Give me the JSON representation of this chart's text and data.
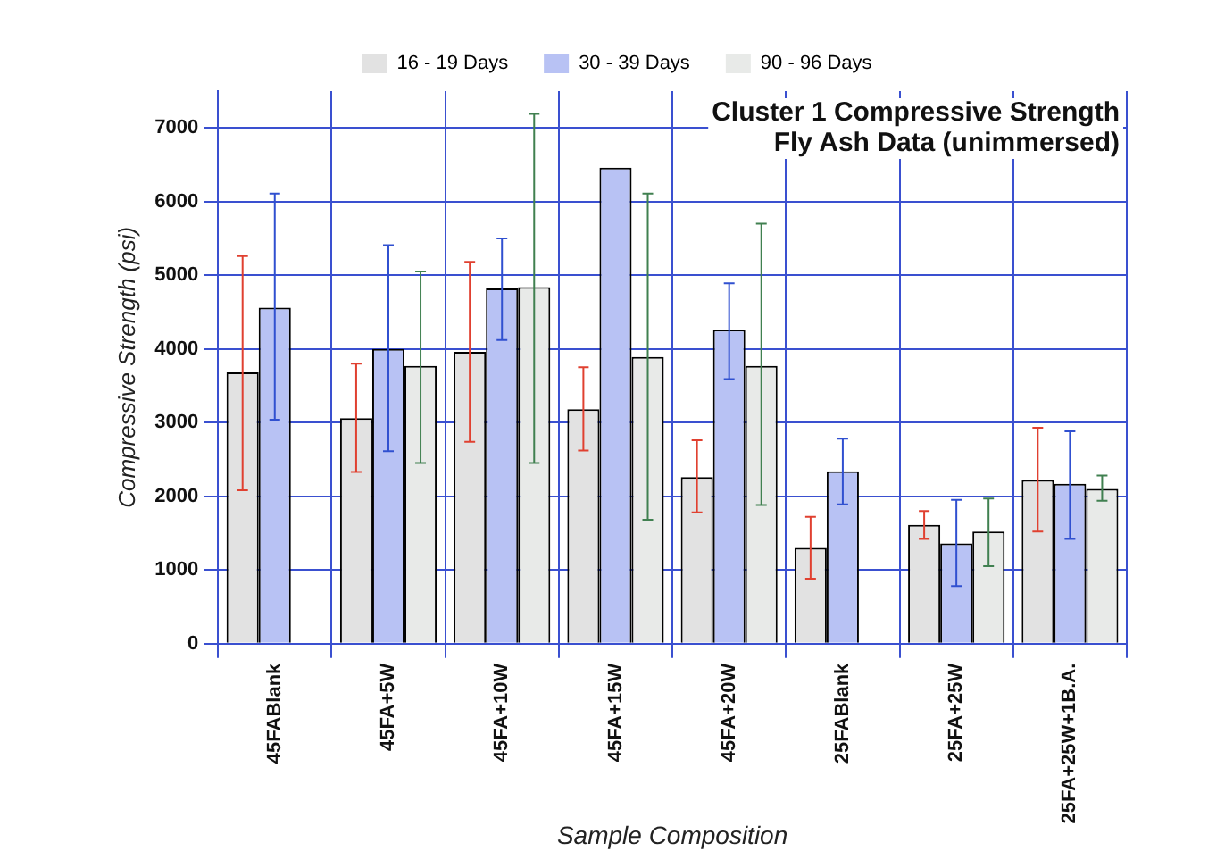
{
  "chart_data": {
    "type": "bar",
    "title": "Cluster 1 Compressive Strength\nFly Ash Data (unimmersed)",
    "xlabel": "Sample Composition",
    "ylabel": "Compressive Strength (psi)",
    "categories": [
      "45FABlank",
      "45FA+5W",
      "45FA+10W",
      "45FA+15W",
      "45FA+20W",
      "25FABlank",
      "25FA+25W",
      "25FA+25W+1B.A."
    ],
    "series": [
      {
        "name": "16 - 19 Days",
        "color": "#e2e2e2",
        "values": [
          3680,
          3060,
          3960,
          3180,
          2260,
          1300,
          1610,
          2220
        ],
        "errors": [
          [
            2080,
            5260
          ],
          [
            2330,
            3800
          ],
          [
            2740,
            5180
          ],
          [
            2620,
            3750
          ],
          [
            1780,
            2760
          ],
          [
            880,
            1720
          ],
          [
            1420,
            1800
          ],
          [
            1520,
            2930
          ]
        ]
      },
      {
        "name": "30 - 39 Days",
        "color": "#b8c2f4",
        "values": [
          4560,
          4000,
          4820,
          6460,
          4260,
          2340,
          1360,
          2170
        ],
        "errors": [
          [
            3040,
            6110
          ],
          [
            2610,
            5410
          ],
          [
            4120,
            5500
          ],
          null,
          [
            3590,
            4890
          ],
          [
            1890,
            2780
          ],
          [
            780,
            1950
          ],
          [
            1420,
            2880
          ]
        ]
      },
      {
        "name": "90 - 96 Days",
        "color": "#e8eae8",
        "values": [
          null,
          3770,
          4840,
          3890,
          3770,
          null,
          1520,
          2100
        ],
        "errors": [
          null,
          [
            2450,
            5050
          ],
          [
            2450,
            7190
          ],
          [
            1680,
            6110
          ],
          [
            1880,
            5700
          ],
          null,
          [
            1050,
            1970
          ],
          [
            1940,
            2280
          ]
        ]
      }
    ],
    "ylim": [
      0,
      7500
    ],
    "yticks": [
      0,
      1000,
      2000,
      3000,
      4000,
      5000,
      6000,
      7000
    ],
    "grid": true,
    "legend": "top"
  }
}
